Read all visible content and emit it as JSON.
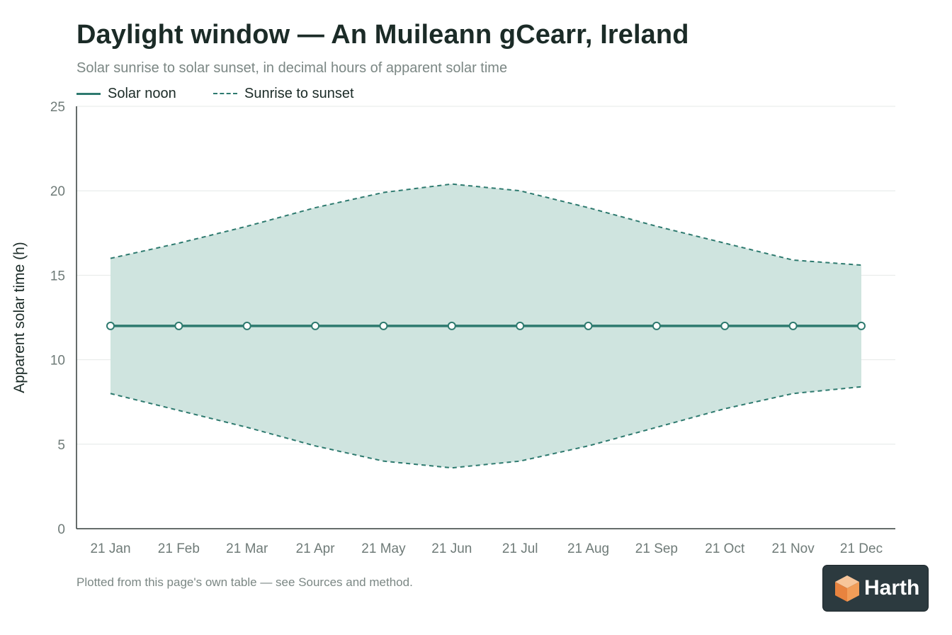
{
  "chart_data": {
    "type": "area",
    "title": "Daylight window — An Muileann gCearr, Ireland",
    "subtitle": "Solar sunrise to solar sunset, in decimal hours of apparent solar time",
    "xlabel": "",
    "ylabel": "Apparent solar time (h)",
    "categories": [
      "21 Jan",
      "21 Feb",
      "21 Mar",
      "21 Apr",
      "21 May",
      "21 Jun",
      "21 Jul",
      "21 Aug",
      "21 Sep",
      "21 Oct",
      "21 Nov",
      "21 Dec"
    ],
    "series": [
      {
        "name": "Solar noon",
        "style": "solid-line-with-markers",
        "values": [
          12,
          12,
          12,
          12,
          12,
          12,
          12,
          12,
          12,
          12,
          12,
          12
        ]
      },
      {
        "name": "Sunrise to sunset",
        "style": "dashed-band",
        "sunrise": [
          8.0,
          7.0,
          6.0,
          4.9,
          4.0,
          3.6,
          4.0,
          4.9,
          6.0,
          7.1,
          8.0,
          8.4
        ],
        "sunset": [
          16.0,
          16.9,
          17.9,
          19.0,
          19.9,
          20.4,
          20.0,
          19.0,
          17.9,
          16.9,
          15.9,
          15.6
        ]
      }
    ],
    "ylim": [
      0,
      25
    ],
    "yticks": [
      0,
      5,
      10,
      15,
      20,
      25
    ],
    "grid": true,
    "legend": "top-left",
    "colors": {
      "line": "#2e7a6f",
      "band_fill": "#cfe4df",
      "grid": "#e4e8e7",
      "axis": "#333d3a",
      "tick_text": "#6f7b78"
    }
  },
  "footnote": "Plotted from this page's own table — see Sources and method.",
  "logo": {
    "text": "Harth",
    "icon": "cube-logo-icon"
  }
}
